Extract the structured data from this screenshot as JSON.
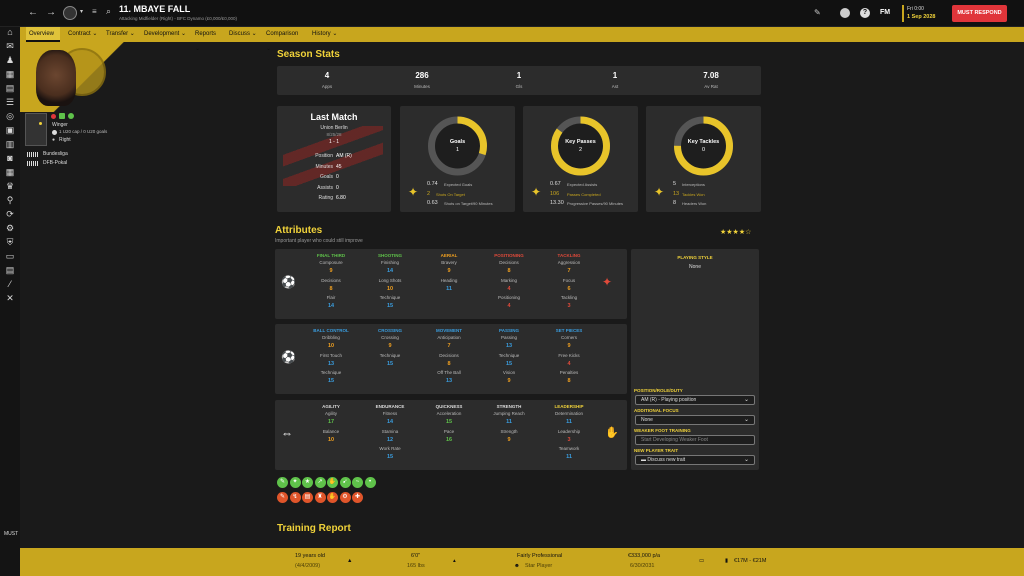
{
  "header": {
    "player_name": "11. MBAYE FALL",
    "subtitle": "Attacking Midfielder (Right) - BFC Dynamo (£0,000/£0,000)",
    "date_day": "Fri 0:00",
    "date": "1 Sep 2028",
    "must_respond": "MUST RESPOND",
    "fm_label": "FM"
  },
  "nav": [
    "Overview",
    "Contract",
    "Transfer",
    "Development",
    "Reports",
    "Discuss",
    "Comparison",
    "History"
  ],
  "player": {
    "position": "Winger",
    "caps": "1 U20 cap / 0 U20 goals",
    "foot": "Right",
    "comps": [
      "Bundesliga",
      "DFB-Pokal"
    ]
  },
  "season_stats": {
    "title": "Season Stats",
    "items": [
      {
        "value": "4",
        "label": "Apps"
      },
      {
        "value": "286",
        "label": "Minutes"
      },
      {
        "value": "1",
        "label": "Gls"
      },
      {
        "value": "1",
        "label": "Ast"
      },
      {
        "value": "7.08",
        "label": "Av Rat"
      }
    ]
  },
  "last_match": {
    "title": "Last Match",
    "opponent": "Union Berlin",
    "date": "8/25/28",
    "score": "1 - 1",
    "rows": [
      {
        "k": "Position",
        "v": "AM (R)"
      },
      {
        "k": "Minutes",
        "v": "45"
      },
      {
        "k": "Goals",
        "v": "0"
      },
      {
        "k": "Assists",
        "v": "0"
      },
      {
        "k": "Rating",
        "v": "6.80"
      }
    ]
  },
  "rings": [
    {
      "title": "Goals",
      "value": "1",
      "fill": 0.3,
      "stats": [
        {
          "n": "0.74",
          "t": "Expected Goals",
          "c": "#ddd"
        },
        {
          "n": "2",
          "t": "Shots On Target",
          "c": "#c8a61e"
        },
        {
          "n": "0.63",
          "t": "Shots on Target/90 Minutes",
          "c": "#ddd"
        }
      ]
    },
    {
      "title": "Key Passes",
      "value": "2",
      "fill": 0.85,
      "stats": [
        {
          "n": "0.67",
          "t": "Expected Assists",
          "c": "#ddd"
        },
        {
          "n": "106",
          "t": "Passes Completed",
          "c": "#c8a61e"
        },
        {
          "n": "13.30",
          "t": "Progressive Passes/90 Minutes",
          "c": "#ddd"
        }
      ]
    },
    {
      "title": "Key Tackles",
      "value": "0",
      "fill": 0.75,
      "stats": [
        {
          "n": "5",
          "t": "Interceptions",
          "c": "#ddd"
        },
        {
          "n": "13",
          "t": "Tackles Won",
          "c": "#c8a61e"
        },
        {
          "n": "8",
          "t": "Headers Won",
          "c": "#ddd"
        }
      ]
    }
  ],
  "attributes": {
    "title": "Attributes",
    "subtitle": "Important player who could still improve",
    "stars": "★★★★☆",
    "groups": [
      {
        "cats": [
          {
            "name": "FINAL THIRD",
            "color": "#5fc24a",
            "a": [
              [
                "Composure",
                "9",
                "#f0a020"
              ],
              [
                "Decisions",
                "8",
                "#f0a020"
              ],
              [
                "Flair",
                "14",
                "#3a9ee0"
              ]
            ]
          },
          {
            "name": "SHOOTING",
            "color": "#5fc24a",
            "a": [
              [
                "Finishing",
                "14",
                "#3a9ee0"
              ],
              [
                "Long Shots",
                "10",
                "#f0a020"
              ],
              [
                "Technique",
                "15",
                "#3a9ee0"
              ]
            ]
          },
          {
            "name": "AERIAL",
            "color": "#f0a020",
            "a": [
              [
                "Bravery",
                "9",
                "#f0a020"
              ],
              [
                "Heading",
                "11",
                "#3a9ee0"
              ]
            ]
          },
          {
            "name": "POSITIONING",
            "color": "#e04a3a",
            "a": [
              [
                "Decisions",
                "8",
                "#f0a020"
              ],
              [
                "Marking",
                "4",
                "#e04a3a"
              ],
              [
                "Positioning",
                "4",
                "#e04a3a"
              ]
            ]
          },
          {
            "name": "TACKLING",
            "color": "#e04a3a",
            "a": [
              [
                "Aggression",
                "7",
                "#f0a020"
              ],
              [
                "Focus",
                "6",
                "#f0a020"
              ],
              [
                "Tackling",
                "3",
                "#e04a3a"
              ]
            ]
          }
        ]
      },
      {
        "cats": [
          {
            "name": "BALL CONTROL",
            "color": "#3a9ee0",
            "a": [
              [
                "Dribbling",
                "10",
                "#f0a020"
              ],
              [
                "First Touch",
                "13",
                "#3a9ee0"
              ],
              [
                "Technique",
                "15",
                "#3a9ee0"
              ]
            ]
          },
          {
            "name": "CROSSING",
            "color": "#3a9ee0",
            "a": [
              [
                "Crossing",
                "9",
                "#f0a020"
              ],
              [
                "Technique",
                "15",
                "#3a9ee0"
              ]
            ]
          },
          {
            "name": "MOVEMENT",
            "color": "#3a9ee0",
            "a": [
              [
                "Anticipation",
                "7",
                "#f0a020"
              ],
              [
                "Decisions",
                "8",
                "#f0a020"
              ],
              [
                "Off The Ball",
                "13",
                "#3a9ee0"
              ]
            ]
          },
          {
            "name": "PASSING",
            "color": "#3a9ee0",
            "a": [
              [
                "Passing",
                "13",
                "#3a9ee0"
              ],
              [
                "Technique",
                "15",
                "#3a9ee0"
              ],
              [
                "Vision",
                "9",
                "#f0a020"
              ]
            ]
          },
          {
            "name": "SET PIECES",
            "color": "#3a9ee0",
            "a": [
              [
                "Corners",
                "9",
                "#f0a020"
              ],
              [
                "Free Kicks",
                "4",
                "#e04a3a"
              ],
              [
                "Penalties",
                "8",
                "#f0a020"
              ]
            ]
          }
        ]
      },
      {
        "cats": [
          {
            "name": "AGILITY",
            "color": "#ddd",
            "a": [
              [
                "Agility",
                "17",
                "#5fc24a"
              ],
              [
                "Balance",
                "10",
                "#f0a020"
              ]
            ]
          },
          {
            "name": "ENDURANCE",
            "color": "#ddd",
            "a": [
              [
                "Fitness",
                "14",
                "#3a9ee0"
              ],
              [
                "Stamina",
                "12",
                "#3a9ee0"
              ],
              [
                "Work Rate",
                "15",
                "#3a9ee0"
              ]
            ]
          },
          {
            "name": "QUICKNESS",
            "color": "#ddd",
            "a": [
              [
                "Acceleration",
                "15",
                "#5fc24a"
              ],
              [
                "Pace",
                "16",
                "#5fc24a"
              ]
            ]
          },
          {
            "name": "STRENGTH",
            "color": "#ddd",
            "a": [
              [
                "Jumping Reach",
                "11",
                "#3a9ee0"
              ],
              [
                "Strength",
                "9",
                "#f0a020"
              ]
            ]
          },
          {
            "name": "LEADERSHIP",
            "color": "#f0d23a",
            "a": [
              [
                "Determination",
                "11",
                "#3a9ee0"
              ],
              [
                "Leadership",
                "3",
                "#e04a3a"
              ],
              [
                "Teamwork",
                "11",
                "#3a9ee0"
              ]
            ]
          }
        ]
      }
    ]
  },
  "side": {
    "playing_style": "PLAYING STYLE",
    "playing_style_val": "None",
    "prd": "POSITION/ROLE/DUTY",
    "prd_val": "AM (R) - Playing position",
    "focus": "ADDITIONAL FOCUS",
    "focus_val": "None",
    "weak": "WEAKER FOOT TRAINING",
    "weak_ph": "Start Developing Weaker Foot",
    "trait": "NEW PLAYER TRAIT",
    "trait_val": "Discuss new trait"
  },
  "training_title": "Training Report",
  "footer": {
    "age": "19 years old",
    "dob": "(4/4/2009)",
    "height": "6'0\"",
    "weight": "165 lbs",
    "personality": "Fairly Professional",
    "status": "Star Player",
    "wage": "€333,000 p/a",
    "contract": "6/30/2031",
    "value": "€17M - €21M"
  },
  "colors": {
    "accent": "#c8a61e",
    "bg": "#1a1a1a",
    "panel": "#2c2c2c",
    "respond": "#e0353a"
  }
}
